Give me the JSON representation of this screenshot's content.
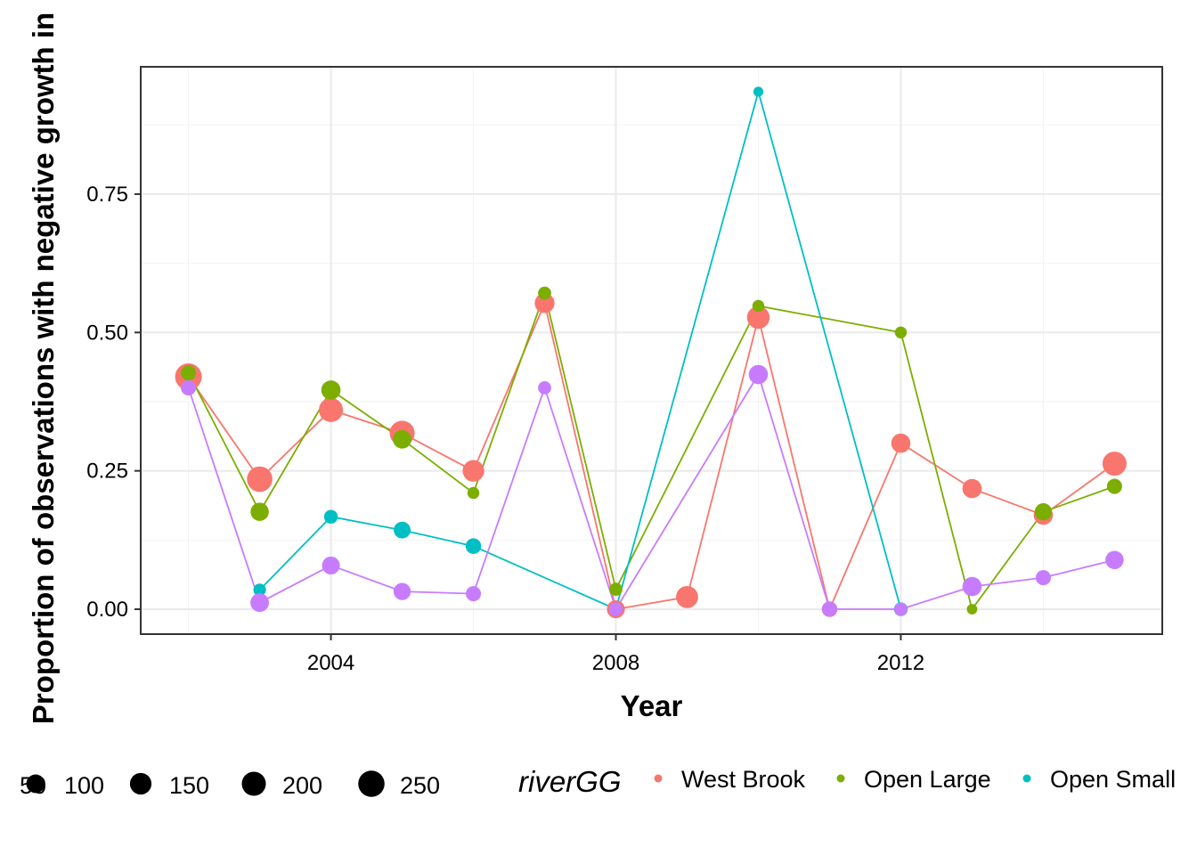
{
  "chart_data": {
    "type": "line",
    "xlabel": "Year",
    "ylabel": "Proportion of observations with negative growth in",
    "xlim": [
      2001.33,
      2015.67
    ],
    "ylim": [
      -0.045,
      0.98
    ],
    "x_ticks": [
      2004,
      2008,
      2012
    ],
    "x_tick_labels": [
      "2004",
      "2008",
      "2012"
    ],
    "y_ticks": [
      0,
      0.25,
      0.5,
      0.75
    ],
    "y_tick_labels": [
      "0.00",
      "0.25",
      "0.50",
      "0.75"
    ],
    "grid": true,
    "legend_position": "bottom",
    "size_legend": {
      "labels": [
        "50",
        "100",
        "150",
        "200",
        "250"
      ],
      "values": [
        50,
        100,
        150,
        200,
        250
      ]
    },
    "color_legend": {
      "title": "riverGG",
      "labels": [
        "West Brook",
        "Open Large",
        "Open Small"
      ]
    },
    "series": [
      {
        "name": "West Brook",
        "color": "#F8766D",
        "points": [
          {
            "x": 2002,
            "y": 0.42,
            "n": 260
          },
          {
            "x": 2003,
            "y": 0.235,
            "n": 230
          },
          {
            "x": 2004,
            "y": 0.36,
            "n": 200
          },
          {
            "x": 2005,
            "y": 0.318,
            "n": 220
          },
          {
            "x": 2006,
            "y": 0.25,
            "n": 150
          },
          {
            "x": 2007,
            "y": 0.553,
            "n": 120
          },
          {
            "x": 2008,
            "y": 0.0,
            "n": 90
          },
          {
            "x": 2009,
            "y": 0.022,
            "n": 160
          },
          {
            "x": 2010,
            "y": 0.527,
            "n": 170
          },
          {
            "x": 2011,
            "y": 0.0,
            "n": 60
          },
          {
            "x": 2012,
            "y": 0.3,
            "n": 110
          },
          {
            "x": 2013,
            "y": 0.218,
            "n": 110
          },
          {
            "x": 2014,
            "y": 0.17,
            "n": 110
          },
          {
            "x": 2015,
            "y": 0.263,
            "n": 200
          }
        ]
      },
      {
        "name": "Open Large",
        "color": "#7CAE00",
        "points": [
          {
            "x": 2002,
            "y": 0.427,
            "n": 55
          },
          {
            "x": 2003,
            "y": 0.176,
            "n": 95
          },
          {
            "x": 2004,
            "y": 0.396,
            "n": 110
          },
          {
            "x": 2005,
            "y": 0.307,
            "n": 100
          },
          {
            "x": 2006,
            "y": 0.21,
            "n": 25
          },
          {
            "x": 2007,
            "y": 0.571,
            "n": 35
          },
          {
            "x": 2008,
            "y": 0.036,
            "n": 35
          },
          {
            "x": 2010,
            "y": 0.548,
            "n": 25
          },
          {
            "x": 2012,
            "y": 0.5,
            "n": 25
          },
          {
            "x": 2013,
            "y": 0.0,
            "n": 15
          },
          {
            "x": 2014,
            "y": 0.176,
            "n": 80
          },
          {
            "x": 2015,
            "y": 0.222,
            "n": 55
          }
        ]
      },
      {
        "name": "Open Small",
        "color": "#00BFC4",
        "points": [
          {
            "x": 2003,
            "y": 0.035,
            "n": 30
          },
          {
            "x": 2004,
            "y": 0.167,
            "n": 40
          },
          {
            "x": 2005,
            "y": 0.143,
            "n": 75
          },
          {
            "x": 2006,
            "y": 0.114,
            "n": 60
          },
          {
            "x": 2008,
            "y": 0.0,
            "n": 40
          },
          {
            "x": 2010,
            "y": 0.935,
            "n": 12
          },
          {
            "x": 2012,
            "y": 0.0,
            "n": 40
          }
        ]
      },
      {
        "name": "",
        "color": "#C77CFF",
        "points": [
          {
            "x": 2002,
            "y": 0.4,
            "n": 55
          },
          {
            "x": 2003,
            "y": 0.012,
            "n": 100
          },
          {
            "x": 2004,
            "y": 0.079,
            "n": 90
          },
          {
            "x": 2005,
            "y": 0.032,
            "n": 80
          },
          {
            "x": 2006,
            "y": 0.028,
            "n": 55
          },
          {
            "x": 2007,
            "y": 0.4,
            "n": 35
          },
          {
            "x": 2008,
            "y": 0.0,
            "n": 40
          },
          {
            "x": 2010,
            "y": 0.424,
            "n": 110
          },
          {
            "x": 2011,
            "y": 0.0,
            "n": 55
          },
          {
            "x": 2012,
            "y": 0.0,
            "n": 35
          },
          {
            "x": 2013,
            "y": 0.041,
            "n": 110
          },
          {
            "x": 2014,
            "y": 0.057,
            "n": 55
          },
          {
            "x": 2015,
            "y": 0.089,
            "n": 95
          }
        ]
      }
    ]
  }
}
